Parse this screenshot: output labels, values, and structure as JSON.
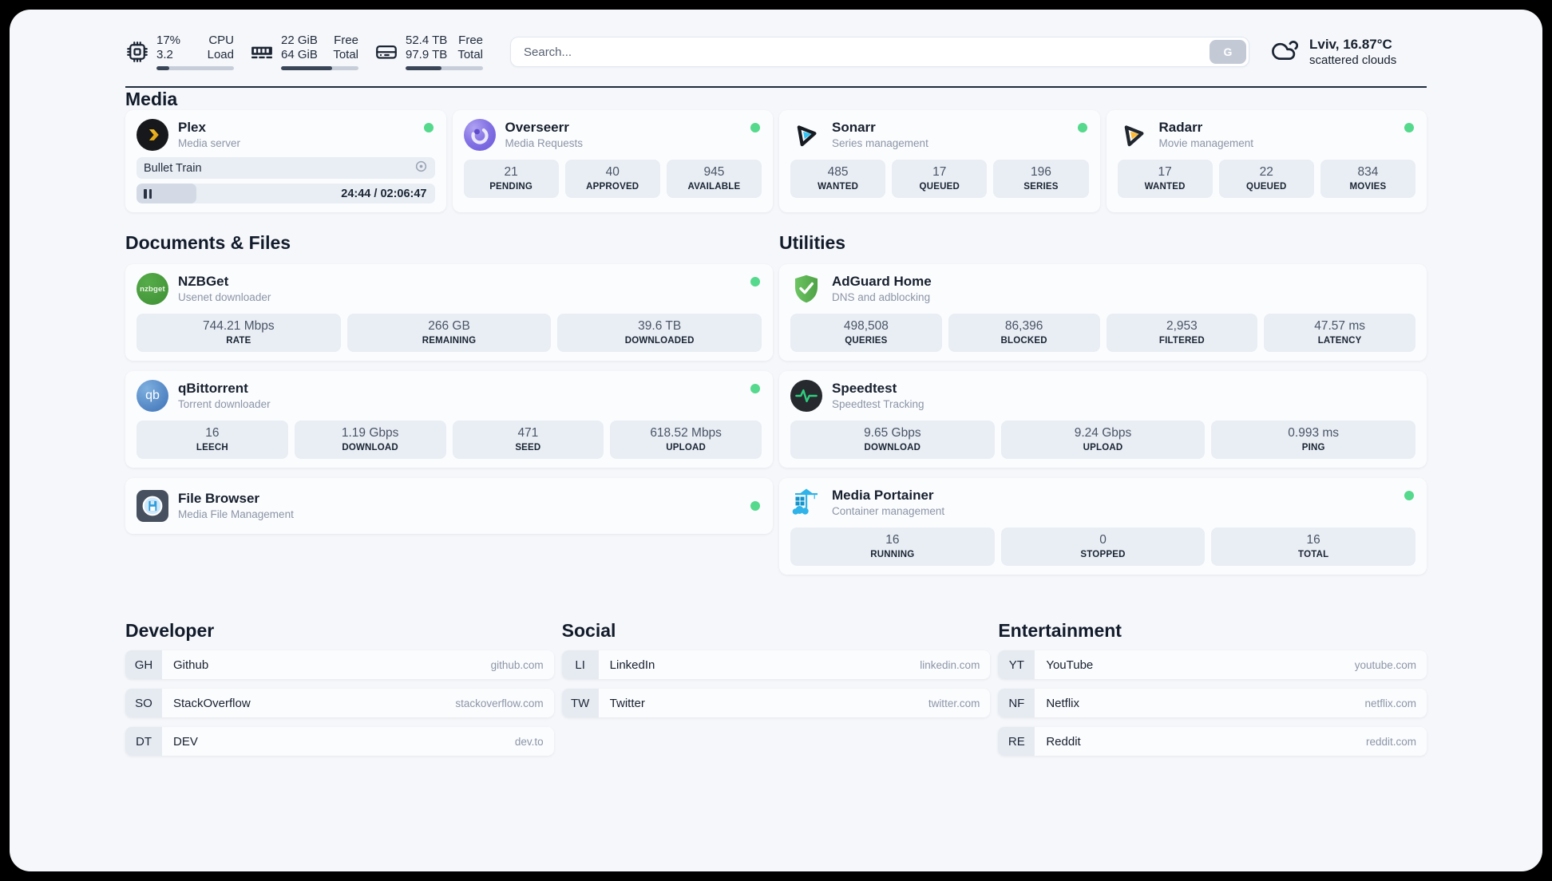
{
  "colors": {
    "status_online": "#55D98C",
    "panel_bg": "#F5F7FA",
    "card_bg": "#FBFCFE",
    "stat_box_bg": "#E9EEF4",
    "text_primary": "#17202E",
    "text_secondary": "#8B95A6",
    "topbar_progress_fill": "#3A4557"
  },
  "topbar": {
    "metrics": [
      {
        "icon": "cpu-icon",
        "values": [
          "17%",
          "3.2"
        ],
        "labels": [
          "CPU",
          "Load"
        ],
        "progress": 17
      },
      {
        "icon": "ram-icon",
        "values": [
          "22 GiB",
          "64 GiB"
        ],
        "labels": [
          "Free",
          "Total"
        ],
        "progress": 66
      },
      {
        "icon": "disk-icon",
        "values": [
          "52.4 TB",
          "97.9 TB"
        ],
        "labels": [
          "Free",
          "Total"
        ],
        "progress": 46
      }
    ],
    "search": {
      "placeholder": "Search...",
      "button_label": "G"
    },
    "weather": {
      "location_temp": "Lviv, 16.87°C",
      "condition": "scattered clouds"
    }
  },
  "media": {
    "heading": "Media",
    "plex": {
      "title": "Plex",
      "subtitle": "Media server",
      "now_playing": "Bullet Train",
      "elapsed_total": "24:44 / 02:06:47",
      "progress": 20
    },
    "overseerr": {
      "title": "Overseerr",
      "subtitle": "Media Requests",
      "stats": [
        {
          "value": "21",
          "label": "PENDING"
        },
        {
          "value": "40",
          "label": "APPROVED"
        },
        {
          "value": "945",
          "label": "AVAILABLE"
        }
      ]
    },
    "sonarr": {
      "title": "Sonarr",
      "subtitle": "Series management",
      "stats": [
        {
          "value": "485",
          "label": "WANTED"
        },
        {
          "value": "17",
          "label": "QUEUED"
        },
        {
          "value": "196",
          "label": "SERIES"
        }
      ]
    },
    "radarr": {
      "title": "Radarr",
      "subtitle": "Movie management",
      "stats": [
        {
          "value": "17",
          "label": "WANTED"
        },
        {
          "value": "22",
          "label": "QUEUED"
        },
        {
          "value": "834",
          "label": "MOVIES"
        }
      ]
    }
  },
  "documents": {
    "heading": "Documents & Files",
    "nzbget": {
      "title": "NZBGet",
      "subtitle": "Usenet downloader",
      "icon_text": "nzbget",
      "stats": [
        {
          "value": "744.21 Mbps",
          "label": "RATE"
        },
        {
          "value": "266 GB",
          "label": "REMAINING"
        },
        {
          "value": "39.6 TB",
          "label": "DOWNLOADED"
        }
      ]
    },
    "qbittorrent": {
      "title": "qBittorrent",
      "subtitle": "Torrent downloader",
      "icon_text": "qb",
      "stats": [
        {
          "value": "16",
          "label": "LEECH"
        },
        {
          "value": "1.19 Gbps",
          "label": "DOWNLOAD"
        },
        {
          "value": "471",
          "label": "SEED"
        },
        {
          "value": "618.52 Mbps",
          "label": "UPLOAD"
        }
      ]
    },
    "filebrowser": {
      "title": "File Browser",
      "subtitle": "Media File Management"
    }
  },
  "utilities": {
    "heading": "Utilities",
    "adguard": {
      "title": "AdGuard Home",
      "subtitle": "DNS and adblocking",
      "stats": [
        {
          "value": "498,508",
          "label": "QUERIES"
        },
        {
          "value": "86,396",
          "label": "BLOCKED"
        },
        {
          "value": "2,953",
          "label": "FILTERED"
        },
        {
          "value": "47.57 ms",
          "label": "LATENCY"
        }
      ]
    },
    "speedtest": {
      "title": "Speedtest",
      "subtitle": "Speedtest Tracking",
      "stats": [
        {
          "value": "9.65 Gbps",
          "label": "DOWNLOAD"
        },
        {
          "value": "9.24 Gbps",
          "label": "UPLOAD"
        },
        {
          "value": "0.993 ms",
          "label": "PING"
        }
      ]
    },
    "portainer": {
      "title": "Media Portainer",
      "subtitle": "Container management",
      "stats": [
        {
          "value": "16",
          "label": "RUNNING"
        },
        {
          "value": "0",
          "label": "STOPPED"
        },
        {
          "value": "16",
          "label": "TOTAL"
        }
      ]
    }
  },
  "bookmarks": [
    {
      "heading": "Developer",
      "items": [
        {
          "abbr": "GH",
          "name": "Github",
          "url": "github.com"
        },
        {
          "abbr": "SO",
          "name": "StackOverflow",
          "url": "stackoverflow.com"
        },
        {
          "abbr": "DT",
          "name": "DEV",
          "url": "dev.to"
        }
      ]
    },
    {
      "heading": "Social",
      "items": [
        {
          "abbr": "LI",
          "name": "LinkedIn",
          "url": "linkedin.com"
        },
        {
          "abbr": "TW",
          "name": "Twitter",
          "url": "twitter.com"
        }
      ]
    },
    {
      "heading": "Entertainment",
      "items": [
        {
          "abbr": "YT",
          "name": "YouTube",
          "url": "youtube.com"
        },
        {
          "abbr": "NF",
          "name": "Netflix",
          "url": "netflix.com"
        },
        {
          "abbr": "RE",
          "name": "Reddit",
          "url": "reddit.com"
        }
      ]
    }
  ]
}
